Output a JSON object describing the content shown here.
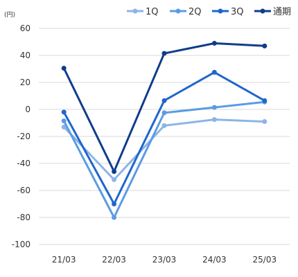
{
  "chart_data": {
    "type": "line",
    "unit": "(円)",
    "categories": [
      "21/03",
      "22/03",
      "23/03",
      "24/03",
      "25/03"
    ],
    "ylim": [
      -100,
      60
    ],
    "yticks": [
      60,
      40,
      20,
      0,
      -20,
      -40,
      -60,
      -80,
      -100
    ],
    "grid": true,
    "legend_position": "top-right",
    "series": [
      {
        "name": "1Q",
        "color": "#8DB4E8",
        "values": [
          -13,
          -52,
          -12,
          -7.5,
          -9
        ]
      },
      {
        "name": "2Q",
        "color": "#5B9BE5",
        "values": [
          -8.5,
          -80,
          -2.5,
          1.5,
          5.5
        ]
      },
      {
        "name": "3Q",
        "color": "#1F66CC",
        "values": [
          -2,
          -70,
          6.5,
          27.5,
          6.5
        ]
      },
      {
        "name": "通期",
        "color": "#0F3D8A",
        "values": [
          30.5,
          -46,
          41.5,
          49,
          47
        ]
      }
    ]
  }
}
